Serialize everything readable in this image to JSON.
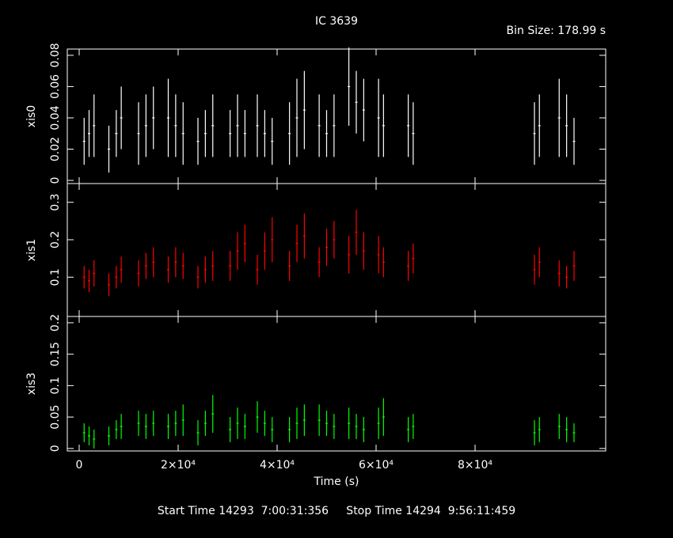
{
  "chart_data": [
    {
      "type": "errorbar",
      "title": "IC 3639",
      "annotation": "Bin Size: 178.99 s",
      "ylabel": "xis0",
      "color": "#ffffff",
      "x": [
        1000,
        2000,
        3000,
        6000,
        7500,
        8500,
        12000,
        13500,
        15000,
        18000,
        19500,
        21000,
        24000,
        25500,
        27000,
        30500,
        32000,
        33500,
        36000,
        37500,
        39000,
        42500,
        44000,
        45500,
        48500,
        50000,
        51500,
        54500,
        56000,
        57500,
        60500,
        61500,
        66500,
        67500,
        92000,
        93000,
        97000,
        98500,
        100000
      ],
      "values": [
        0.025,
        0.03,
        0.035,
        0.02,
        0.03,
        0.04,
        0.03,
        0.035,
        0.04,
        0.04,
        0.035,
        0.03,
        0.025,
        0.03,
        0.035,
        0.03,
        0.035,
        0.03,
        0.035,
        0.03,
        0.025,
        0.03,
        0.04,
        0.045,
        0.035,
        0.03,
        0.035,
        0.06,
        0.05,
        0.045,
        0.04,
        0.035,
        0.035,
        0.03,
        0.03,
        0.035,
        0.04,
        0.035,
        0.025
      ],
      "errors": [
        0.015,
        0.015,
        0.02,
        0.015,
        0.015,
        0.02,
        0.02,
        0.02,
        0.02,
        0.025,
        0.02,
        0.02,
        0.015,
        0.015,
        0.02,
        0.015,
        0.02,
        0.015,
        0.02,
        0.015,
        0.015,
        0.02,
        0.025,
        0.025,
        0.02,
        0.015,
        0.02,
        0.025,
        0.02,
        0.02,
        0.025,
        0.02,
        0.02,
        0.02,
        0.02,
        0.02,
        0.025,
        0.02,
        0.015
      ],
      "ylim": [
        -0.002,
        0.084
      ],
      "yticks": [
        0,
        0.02,
        0.04,
        0.06,
        0.08
      ]
    },
    {
      "type": "errorbar",
      "ylabel": "xis1",
      "color": "#ff0000",
      "x": [
        1000,
        2000,
        3000,
        6000,
        7500,
        8500,
        12000,
        13500,
        15000,
        18000,
        19500,
        21000,
        24000,
        25500,
        27000,
        30500,
        32000,
        33500,
        36000,
        37500,
        39000,
        42500,
        44000,
        45500,
        48500,
        50000,
        51500,
        54500,
        56000,
        57500,
        60500,
        61500,
        66500,
        67500,
        92000,
        93000,
        97000,
        98500,
        100000
      ],
      "values": [
        0.1,
        0.09,
        0.11,
        0.08,
        0.1,
        0.12,
        0.11,
        0.13,
        0.14,
        0.12,
        0.14,
        0.13,
        0.1,
        0.12,
        0.13,
        0.13,
        0.17,
        0.19,
        0.12,
        0.17,
        0.2,
        0.13,
        0.19,
        0.21,
        0.14,
        0.18,
        0.2,
        0.16,
        0.22,
        0.17,
        0.16,
        0.14,
        0.13,
        0.15,
        0.12,
        0.14,
        0.11,
        0.1,
        0.13
      ],
      "errors": [
        0.03,
        0.03,
        0.035,
        0.03,
        0.03,
        0.035,
        0.035,
        0.035,
        0.04,
        0.035,
        0.04,
        0.035,
        0.03,
        0.035,
        0.04,
        0.04,
        0.05,
        0.05,
        0.04,
        0.05,
        0.06,
        0.04,
        0.05,
        0.06,
        0.04,
        0.05,
        0.05,
        0.05,
        0.06,
        0.05,
        0.05,
        0.04,
        0.04,
        0.04,
        0.04,
        0.04,
        0.035,
        0.03,
        0.04
      ],
      "ylim": [
        -0.005,
        0.35
      ],
      "yticks": [
        0.1,
        0.2,
        0.3
      ]
    },
    {
      "type": "errorbar",
      "ylabel": "xis3",
      "xlabel": "Time (s)",
      "footer": "Start Time 14293  7:00:31:356     Stop Time 14294  9:56:11:459",
      "color": "#00ff00",
      "x": [
        1000,
        2000,
        3000,
        6000,
        7500,
        8500,
        12000,
        13500,
        15000,
        18000,
        19500,
        21000,
        24000,
        25500,
        27000,
        30500,
        32000,
        33500,
        36000,
        37500,
        39000,
        42500,
        44000,
        45500,
        48500,
        50000,
        51500,
        54500,
        56000,
        57500,
        60500,
        61500,
        66500,
        67500,
        92000,
        93000,
        97000,
        98500,
        100000
      ],
      "values": [
        0.025,
        0.02,
        0.015,
        0.02,
        0.03,
        0.035,
        0.04,
        0.035,
        0.04,
        0.035,
        0.04,
        0.045,
        0.025,
        0.04,
        0.055,
        0.03,
        0.04,
        0.035,
        0.05,
        0.04,
        0.03,
        0.03,
        0.04,
        0.045,
        0.045,
        0.04,
        0.035,
        0.04,
        0.035,
        0.03,
        0.04,
        0.05,
        0.03,
        0.035,
        0.025,
        0.03,
        0.035,
        0.03,
        0.025
      ],
      "errors": [
        0.015,
        0.015,
        0.015,
        0.015,
        0.015,
        0.02,
        0.02,
        0.02,
        0.02,
        0.02,
        0.02,
        0.025,
        0.02,
        0.02,
        0.03,
        0.02,
        0.025,
        0.02,
        0.025,
        0.02,
        0.02,
        0.02,
        0.025,
        0.025,
        0.025,
        0.02,
        0.02,
        0.025,
        0.02,
        0.02,
        0.025,
        0.03,
        0.02,
        0.02,
        0.02,
        0.02,
        0.02,
        0.02,
        0.015
      ],
      "ylim": [
        -0.004,
        0.21
      ],
      "yticks": [
        0,
        0.05,
        0.1,
        0.15,
        0.2
      ],
      "xlim": [
        -2400,
        106400
      ],
      "xticks": [
        0,
        {
          "value": 20000,
          "label": "2×10⁴"
        },
        {
          "value": 40000,
          "label": "4×10⁴"
        },
        {
          "value": 60000,
          "label": "6×10⁴"
        },
        {
          "value": 80000,
          "label": "8×10⁴"
        }
      ]
    }
  ]
}
